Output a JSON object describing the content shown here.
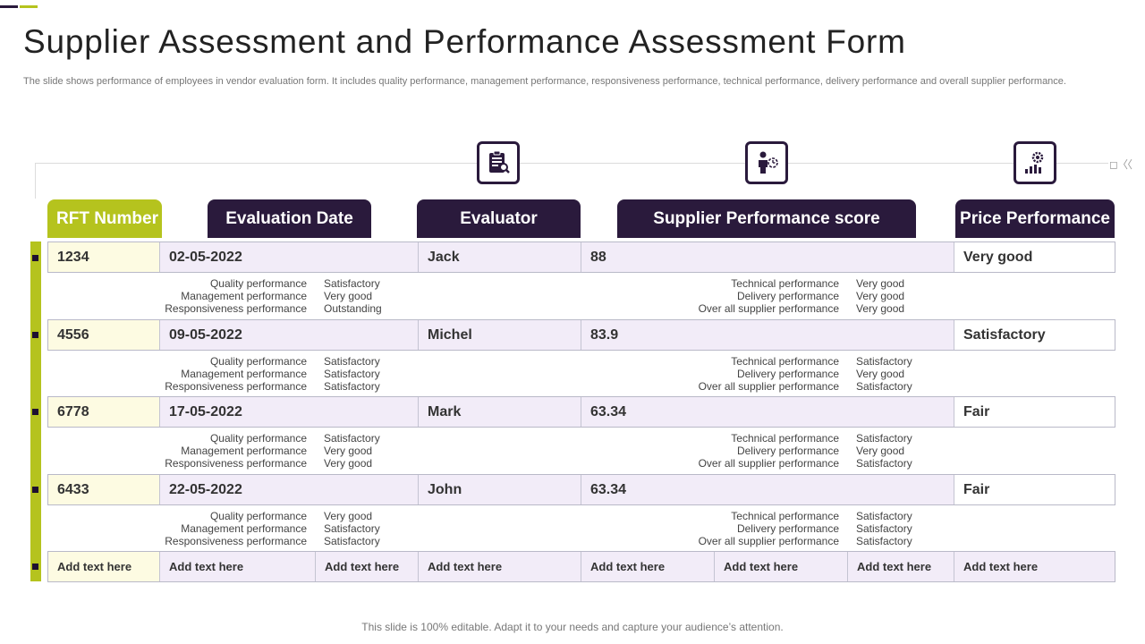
{
  "title": "Supplier Assessment and Performance Assessment Form",
  "subtitle": "The slide shows performance of employees in vendor evaluation form. It includes quality performance, management performance, responsiveness performance, technical performance, delivery performance and overall supplier performance.",
  "corner_mark": "◻〈〈",
  "icons": [
    "clipboard-report-icon",
    "person-clock-icon",
    "gear-bar-chart-icon"
  ],
  "headers": {
    "rft": "RFT Number",
    "date": "Evaluation Date",
    "evaluator": "Evaluator",
    "score": "Supplier Performance score",
    "price": "Price Performance"
  },
  "rows": [
    {
      "rft": "1234",
      "date": "02-05-2022",
      "evaluator": "Jack",
      "score": "88",
      "price": "Very good",
      "left_labels": [
        "Quality performance",
        "Management performance",
        "Responsiveness performance"
      ],
      "left_values": [
        "Satisfactory",
        "Very good",
        "Outstanding"
      ],
      "right_labels": [
        "Technical performance",
        "Delivery performance",
        "Over all supplier performance"
      ],
      "right_values": [
        "Very good",
        "Very good",
        "Very good"
      ]
    },
    {
      "rft": "4556",
      "date": "09-05-2022",
      "evaluator": "Michel",
      "score": "83.9",
      "price": "Satisfactory",
      "left_labels": [
        "Quality performance",
        "Management performance",
        "Responsiveness performance"
      ],
      "left_values": [
        "Satisfactory",
        "Satisfactory",
        "Satisfactory"
      ],
      "right_labels": [
        "Technical performance",
        "Delivery performance",
        "Over all supplier performance"
      ],
      "right_values": [
        "Satisfactory",
        "Very good",
        "Satisfactory"
      ]
    },
    {
      "rft": "6778",
      "date": "17-05-2022",
      "evaluator": "Mark",
      "score": "63.34",
      "price": "Fair",
      "left_labels": [
        "Quality performance",
        "Management performance",
        "Responsiveness performance"
      ],
      "left_values": [
        "Satisfactory",
        "Very good",
        "Very good"
      ],
      "right_labels": [
        "Technical performance",
        "Delivery performance",
        "Over all supplier performance"
      ],
      "right_values": [
        "Satisfactory",
        "Very good",
        "Satisfactory"
      ]
    },
    {
      "rft": "6433",
      "date": "22-05-2022",
      "evaluator": "John",
      "score": "63.34",
      "price": "Fair",
      "left_labels": [
        "Quality performance",
        "Management performance",
        "Responsiveness performance"
      ],
      "left_values": [
        "Very good",
        "Satisfactory",
        "Satisfactory"
      ],
      "right_labels": [
        "Technical performance",
        "Delivery performance",
        "Over all supplier performance"
      ],
      "right_values": [
        "Satisfactory",
        "Satisfactory",
        "Satisfactory"
      ]
    }
  ],
  "add_row": [
    "Add text here",
    "Add text here",
    "Add text here",
    "Add text here",
    "Add text here",
    "Add text here",
    "Add text here",
    "Add text here"
  ],
  "footer": "This slide is 100% editable. Adapt it to your needs and capture your audience’s attention.",
  "colors": {
    "dark": "#2a1a3c",
    "lime": "#b5c31e",
    "lavender": "#f2ecf8",
    "cream": "#fdfbe2"
  }
}
